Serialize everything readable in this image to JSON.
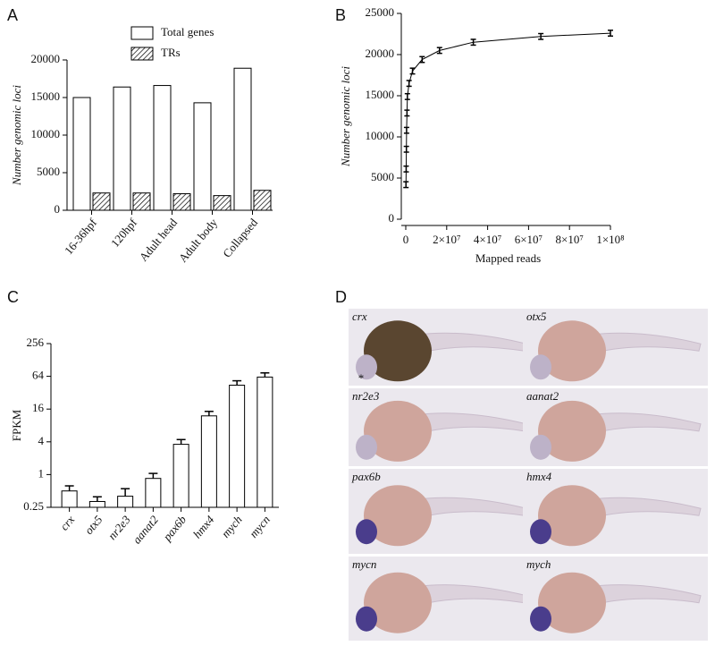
{
  "chart_data": [
    {
      "type": "bar",
      "panel_label": "A",
      "ylabel": "Number genomic loci",
      "categories": [
        "16-36hpf",
        "120hpf",
        "Adult head",
        "Adult body",
        "Collapsed"
      ],
      "series": [
        {
          "name": "Total genes",
          "color": "#ffffff",
          "hatch": false,
          "values": [
            15000,
            16400,
            16600,
            14300,
            18900
          ]
        },
        {
          "name": "TRs",
          "color": "#ffffff",
          "hatch": true,
          "values": [
            2300,
            2300,
            2200,
            1950,
            2650
          ]
        }
      ],
      "ylim": [
        0,
        20000
      ],
      "yticks": [
        0,
        5000,
        10000,
        15000,
        20000
      ],
      "legend": "top"
    },
    {
      "type": "line",
      "panel_label": "B",
      "ylabel": "Number genomic loci",
      "xlabel": "Mapped reads",
      "x": [
        100000,
        200000,
        300000,
        400000,
        600000,
        800000,
        1600000,
        3300000,
        8000000,
        16500000,
        33000000,
        66000000,
        100000000
      ],
      "series": [
        {
          "name": "Number genomic loci",
          "color": "#000000",
          "values": [
            4200,
            6100,
            8500,
            10800,
            12900,
            14900,
            16500,
            18000,
            19400,
            20500,
            21500,
            22200,
            22600
          ],
          "errors": [
            350,
            350,
            350,
            350,
            350,
            350,
            350,
            350,
            350,
            350,
            350,
            350,
            350
          ]
        }
      ],
      "xlim": [
        0,
        100000000
      ],
      "xticks": [
        0,
        {
          "value": 20000000,
          "label": "2×10⁷"
        },
        {
          "value": 40000000,
          "label": "4×10⁷"
        },
        {
          "value": 60000000,
          "label": "6×10⁷"
        },
        {
          "value": 80000000,
          "label": "8×10⁷"
        },
        {
          "value": 100000000,
          "label": "1×10⁸"
        }
      ],
      "ylim": [
        0,
        25000
      ],
      "yticks": [
        0,
        5000,
        10000,
        15000,
        20000,
        25000
      ]
    },
    {
      "type": "bar",
      "panel_label": "C",
      "ylabel": "FPKM",
      "log_base": 2,
      "categories": [
        "crx",
        "otx5",
        "nr2e3",
        "aanat2",
        "pax6b",
        "hmx4",
        "mych",
        "mycn"
      ],
      "series": [
        {
          "name": "FPKM",
          "color": "#ffffff",
          "hatch": false,
          "values": [
            0.5,
            0.32,
            0.4,
            0.85,
            3.6,
            12,
            44,
            62
          ],
          "errors": [
            0.12,
            0.07,
            0.15,
            0.2,
            0.8,
            2.5,
            9,
            12
          ]
        }
      ],
      "ylim": [
        0.25,
        256
      ],
      "yticks": [
        0.25,
        1,
        4,
        16,
        64,
        256
      ]
    }
  ],
  "panel_d": {
    "label": "D",
    "images": [
      "crx",
      "otx5",
      "nr2e3",
      "aanat2",
      "pax6b",
      "hmx4",
      "mycn",
      "mych"
    ],
    "annotation": "*"
  }
}
